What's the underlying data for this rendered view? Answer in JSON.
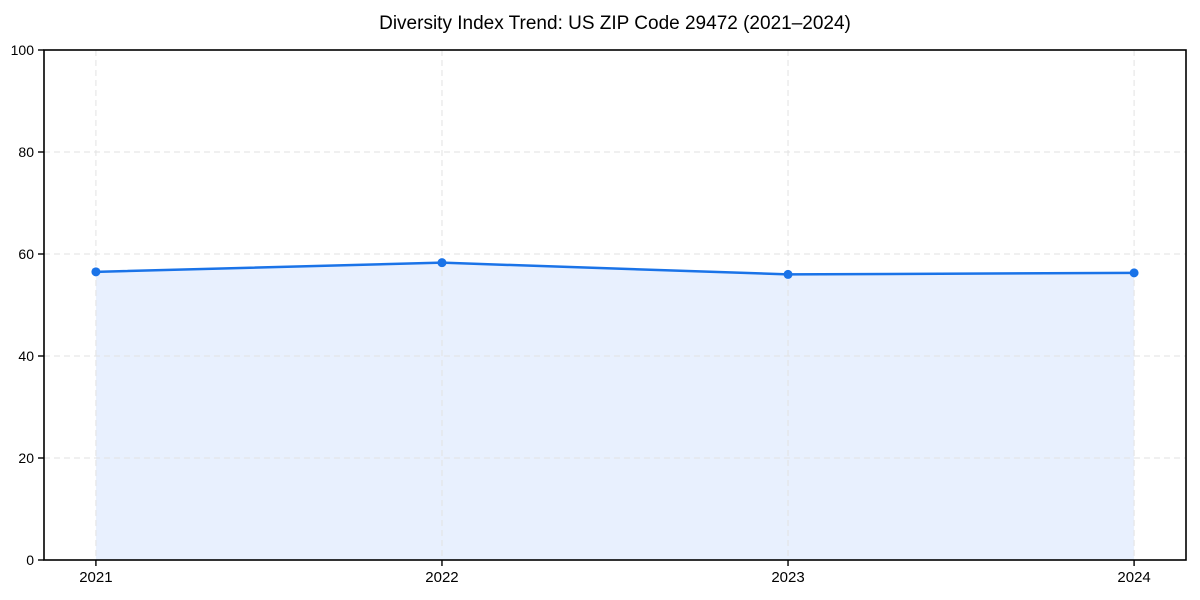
{
  "chart_data": {
    "type": "area",
    "title": "Diversity Index Trend: US ZIP Code 29472 (2021–2024)",
    "xlabel": "",
    "ylabel": "",
    "categories": [
      "2021",
      "2022",
      "2023",
      "2024"
    ],
    "x": [
      2021,
      2022,
      2023,
      2024
    ],
    "series": [
      {
        "name": "Diversity Index",
        "values": [
          56.5,
          58.3,
          56.0,
          56.3
        ]
      }
    ],
    "ylim": [
      0,
      100
    ],
    "yticks": [
      0,
      20,
      40,
      60,
      80,
      100
    ],
    "xlim": [
      2020.85,
      2024.15
    ],
    "grid": true,
    "grid_style": "dashed",
    "legend_position": "none",
    "colors": {
      "line": "#1a73e8",
      "marker": "#1a73e8",
      "area_fill": "#e8f0fe",
      "grid": "#e2e2e2",
      "spine": "#000000",
      "tick_text": "#000000",
      "background": "#ffffff"
    }
  }
}
